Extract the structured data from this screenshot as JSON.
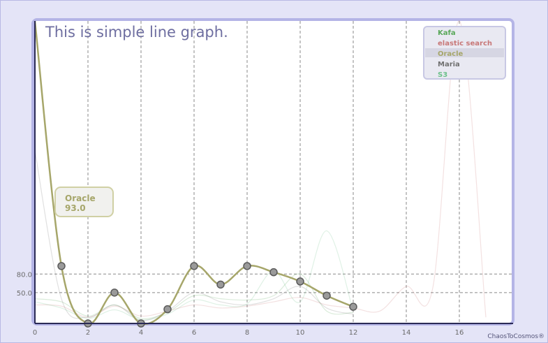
{
  "chart_data": {
    "type": "line",
    "title": "This is simple line graph.",
    "xlabel": "",
    "ylabel": "",
    "x_ticks": [
      "0",
      "2",
      "4",
      "6",
      "8",
      "10",
      "12",
      "14",
      "16"
    ],
    "y_ticks": [
      "50.0",
      "80.0"
    ],
    "xlim": [
      0,
      18
    ],
    "ylim": [
      0,
      490
    ],
    "grid": true,
    "legend_position": "top-right",
    "series": [
      {
        "name": "Kafa",
        "color": "#5aa85a",
        "highlighted": false,
        "x": [
          0,
          1,
          2,
          3,
          4,
          5,
          6,
          7,
          8,
          9,
          10,
          11,
          12
        ],
        "y": [
          40,
          35,
          12,
          30,
          8,
          18,
          45,
          40,
          38,
          45,
          80,
          20,
          18
        ]
      },
      {
        "name": "elastic search",
        "color": "#c87878",
        "highlighted": false,
        "x": [
          0,
          1,
          2,
          3,
          4,
          5,
          6,
          7,
          8,
          9,
          10,
          11,
          12,
          13,
          14,
          15,
          16,
          17
        ],
        "y": [
          30,
          28,
          10,
          28,
          12,
          20,
          30,
          25,
          28,
          35,
          42,
          30,
          25,
          20,
          60,
          58,
          490,
          10
        ]
      },
      {
        "name": "Oracle",
        "color": "#a6a66a",
        "highlighted": true,
        "x": [
          0,
          1,
          2,
          3,
          4,
          5,
          6,
          7,
          8,
          9,
          10,
          11,
          12
        ],
        "y": [
          490,
          93,
          0,
          50,
          0,
          23,
          93,
          63,
          93,
          83,
          68,
          45,
          27
        ]
      },
      {
        "name": "Maria",
        "color": "#707070",
        "highlighted": false,
        "x": [
          0,
          1,
          2,
          3,
          4,
          5,
          6,
          7,
          8,
          9,
          10,
          11,
          12
        ],
        "y": [
          280,
          40,
          10,
          30,
          5,
          20,
          50,
          35,
          30,
          40,
          60,
          25,
          15
        ]
      },
      {
        "name": "S3",
        "color": "#6cc08a",
        "highlighted": false,
        "x": [
          0,
          1,
          2,
          3,
          4,
          5,
          6,
          7,
          8,
          9,
          10,
          11,
          12
        ],
        "y": [
          35,
          25,
          8,
          22,
          6,
          15,
          38,
          30,
          32,
          85,
          35,
          150,
          20
        ]
      }
    ],
    "tooltip": {
      "series": "Oracle",
      "value": "93.0"
    },
    "credit": "ChaosToCosmos®"
  }
}
